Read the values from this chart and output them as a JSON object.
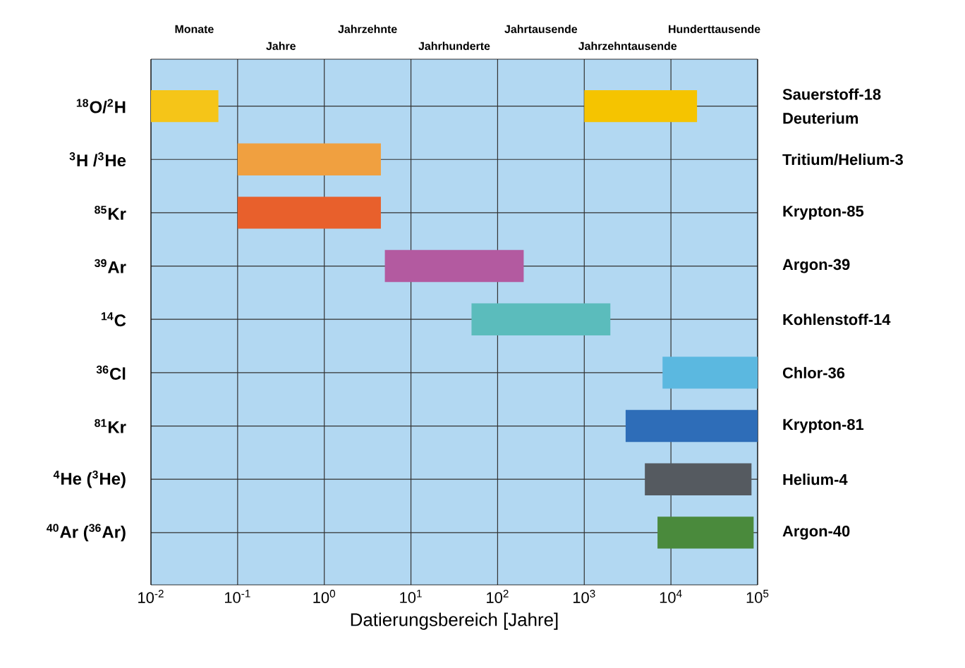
{
  "chart_data": {
    "type": "bar",
    "orientation": "horizontal",
    "log": "x",
    "grid": true,
    "xlabel": "Datierungsbereich [Jahre]",
    "categories": [
      "$^{18}$O/$^{2}$H",
      "$^{3}$H /$^{3}$He",
      "$^{85}$Kr",
      "$^{39}$Ar",
      "$^{14}$C",
      "$^{36}$Cl",
      "$^{81}$Kr",
      "$^{4}$He ($^{3}$He)",
      "$^{40}$Ar ($^{36}$Ar)"
    ],
    "series": [
      {
        "values": [
          0.05,
          4.4,
          4.4,
          195,
          1950,
          92000,
          97000,
          80000,
          83000
        ],
        "base": [
          0.01,
          0.1,
          0.1,
          5,
          50,
          8000,
          3000,
          5000,
          7000
        ],
        "colors": [
          "#f5c518",
          "#f0a040",
          "#e8602c",
          "#b35aa0",
          "#5bbcbc",
          "#5bb8e0",
          "#2e6db8",
          "#555a60",
          "#4a8a3c"
        ]
      },
      {
        "values": [
          19000,
          null,
          null,
          null,
          null,
          null,
          null,
          null,
          null
        ],
        "base": [
          1000,
          null,
          null,
          null,
          null,
          null,
          null,
          null,
          null
        ],
        "colors": [
          "#f5c400",
          null,
          null,
          null,
          null,
          null,
          null,
          null,
          null
        ]
      }
    ],
    "xlim": [
      0.01,
      100000
    ],
    "xticks": [
      {
        "value": 0.01,
        "label": "10$^{-2}$"
      },
      {
        "value": 0.1,
        "label": "10$^{-1}$"
      },
      {
        "value": 1,
        "label": "10$^{0}$"
      },
      {
        "value": 10,
        "label": "10$^{1}$"
      },
      {
        "value": 100,
        "label": "10$^{2}$"
      },
      {
        "value": 1000,
        "label": "10$^{3}$"
      },
      {
        "value": 10000,
        "label": "10$^{4}$"
      },
      {
        "value": 100000,
        "label": "10$^{5}$"
      }
    ],
    "annotations": [
      "Monate",
      "Jahre",
      "Jahrzehnte",
      "Jahrhunderte",
      "Jahrtausende",
      "Jahrzehntausende",
      "Hunderttausende",
      "Sauerstoff-18",
      "Deuterium",
      "Tritium/Helium-3",
      "Krypton-85",
      "Argon-39",
      "Kohlenstoff-14",
      "Chlor-36",
      "Krypton-81",
      "Helium-4",
      "Argon-40"
    ]
  }
}
